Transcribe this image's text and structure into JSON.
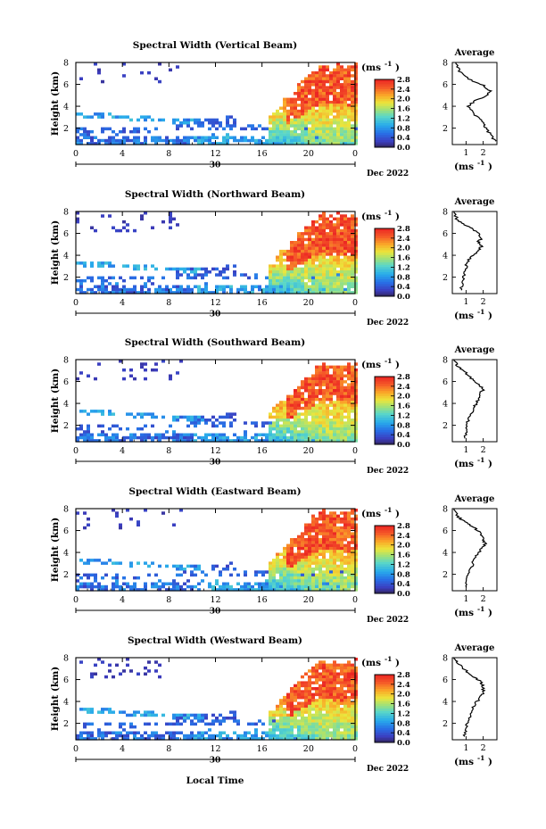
{
  "chart_data": {
    "type": "heatmap",
    "panels": [
      {
        "title": "Spectral Width (Vertical Beam)",
        "profile": [
          [
            2.7,
            0.8
          ],
          [
            2.5,
            1.2
          ],
          [
            2.2,
            1.9
          ],
          [
            2.0,
            2.5
          ],
          [
            1.5,
            3.2
          ],
          [
            1.1,
            4.0
          ],
          [
            1.5,
            4.5
          ],
          [
            2.2,
            5.0
          ],
          [
            2.4,
            5.4
          ],
          [
            2.0,
            5.9
          ],
          [
            1.1,
            6.5
          ],
          [
            0.6,
            7.2
          ],
          [
            0.4,
            8.0
          ]
        ]
      },
      {
        "title": "Spectral Width (Northward Beam)",
        "profile": [
          [
            0.7,
            0.8
          ],
          [
            0.8,
            1.5
          ],
          [
            0.9,
            2.2
          ],
          [
            1.0,
            3.0
          ],
          [
            1.2,
            3.7
          ],
          [
            1.6,
            4.3
          ],
          [
            1.9,
            4.8
          ],
          [
            1.7,
            5.2
          ],
          [
            1.9,
            5.6
          ],
          [
            1.6,
            6.2
          ],
          [
            1.0,
            6.7
          ],
          [
            0.5,
            7.2
          ],
          [
            0.3,
            8.0
          ]
        ]
      },
      {
        "title": "Spectral Width (Southward Beam)",
        "profile": [
          [
            0.9,
            0.8
          ],
          [
            1.0,
            1.5
          ],
          [
            1.1,
            2.3
          ],
          [
            1.3,
            3.0
          ],
          [
            1.5,
            3.7
          ],
          [
            1.7,
            4.3
          ],
          [
            1.8,
            4.8
          ],
          [
            2.0,
            5.3
          ],
          [
            1.7,
            5.8
          ],
          [
            1.3,
            6.3
          ],
          [
            0.9,
            6.9
          ],
          [
            0.5,
            7.4
          ],
          [
            0.3,
            8.0
          ]
        ]
      },
      {
        "title": "Spectral Width (Eastward Beam)",
        "profile": [
          [
            1.0,
            0.8
          ],
          [
            1.1,
            1.6
          ],
          [
            1.2,
            2.3
          ],
          [
            1.4,
            3.0
          ],
          [
            1.6,
            3.7
          ],
          [
            1.9,
            4.3
          ],
          [
            2.1,
            4.8
          ],
          [
            2.0,
            5.3
          ],
          [
            1.8,
            5.9
          ],
          [
            1.4,
            6.3
          ],
          [
            0.9,
            6.8
          ],
          [
            0.5,
            7.3
          ],
          [
            0.3,
            8.0
          ]
        ]
      },
      {
        "title": "Spectral Width (Westward Beam)",
        "profile": [
          [
            0.9,
            0.8
          ],
          [
            1.0,
            1.5
          ],
          [
            1.1,
            2.2
          ],
          [
            1.3,
            3.0
          ],
          [
            1.5,
            3.7
          ],
          [
            1.8,
            4.3
          ],
          [
            2.0,
            4.8
          ],
          [
            2.0,
            5.4
          ],
          [
            1.8,
            5.9
          ],
          [
            1.4,
            6.3
          ],
          [
            0.9,
            6.9
          ],
          [
            0.5,
            7.5
          ],
          [
            0.3,
            8.0
          ]
        ]
      }
    ],
    "xlabel": "Local Time",
    "ylabel": "Height (km)",
    "x_ticks": [
      "0",
      "4",
      "8",
      "12",
      "16",
      "20",
      "0"
    ],
    "x_sub_label": "30",
    "date_label": "Dec 2022",
    "colorbar_label": "(ms",
    "colorbar_exp": "-1",
    "colorbar_ticks": [
      "2.8",
      "2.4",
      "2.0",
      "1.6",
      "1.2",
      "0.8",
      "0.4",
      "0.0"
    ],
    "colorbar_range": [
      0,
      2.8
    ],
    "profile_title": "Average",
    "profile_xlabel": "(ms",
    "profile_xlabel_exp": "-1",
    "profile_x_ticks": [
      "1",
      "2"
    ],
    "profile_xlim": [
      0.2,
      2.8
    ],
    "y_ticks": [
      "8",
      "6",
      "4",
      "2"
    ],
    "ylim": [
      0.5,
      8
    ]
  }
}
